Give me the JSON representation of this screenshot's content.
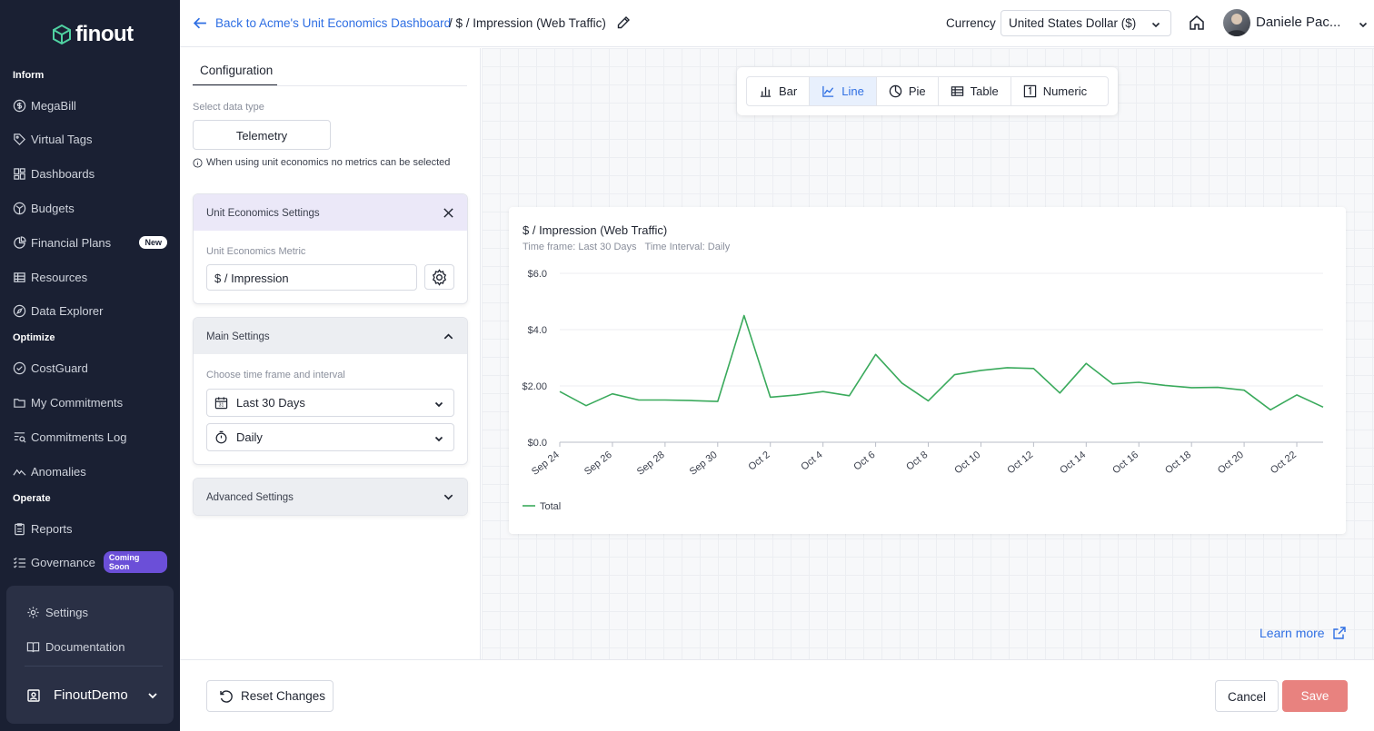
{
  "brand": {
    "name": "finout"
  },
  "sidebar": {
    "sections": {
      "inform": "Inform",
      "optimize": "Optimize",
      "operate": "Operate"
    },
    "items": [
      {
        "label": "MegaBill"
      },
      {
        "label": "Virtual Tags"
      },
      {
        "label": "Dashboards"
      },
      {
        "label": "Budgets"
      },
      {
        "label": "Financial Plans",
        "badge": "New"
      },
      {
        "label": "Resources"
      },
      {
        "label": "Data Explorer"
      },
      {
        "label": "CostGuard"
      },
      {
        "label": "My Commitments"
      },
      {
        "label": "Commitments Log"
      },
      {
        "label": "Anomalies"
      },
      {
        "label": "Reports"
      },
      {
        "label": "Governance",
        "badge": "Coming Soon"
      }
    ],
    "bottom": {
      "settings": "Settings",
      "documentation": "Documentation",
      "org": "FinoutDemo"
    }
  },
  "header": {
    "back_label": "Back to Acme's Unit Economics Dashboard",
    "separator": "/",
    "title": "$ / Impression (Web Traffic)",
    "currency_label": "Currency",
    "currency_value": "United States Dollar ($)",
    "user_name": "Daniele Pac..."
  },
  "config": {
    "tab": "Configuration",
    "data_type_label": "Select data type",
    "data_type_value": "Telemetry",
    "note": "When using unit economics no metrics can be selected",
    "ue_settings": {
      "title": "Unit Economics Settings",
      "metric_label": "Unit Economics Metric",
      "metric_value": "$ / Impression"
    },
    "main_settings": {
      "title": "Main Settings",
      "timeframe_label": "Choose time frame and interval",
      "timeframe_value": "Last 30 Days",
      "interval_value": "Daily"
    },
    "advanced_settings": {
      "title": "Advanced Settings"
    }
  },
  "chart_types": {
    "bar": "Bar",
    "line": "Line",
    "pie": "Pie",
    "table": "Table",
    "numeric": "Numeric",
    "active": "Line"
  },
  "chart_data": {
    "type": "line",
    "title": "$ / Impression (Web Traffic)",
    "timeframe": "Time frame: Last 30 Days",
    "interval": "Time Interval: Daily",
    "x": [
      "Sep 24",
      "Sep 25",
      "Sep 26",
      "Sep 27",
      "Sep 28",
      "Sep 29",
      "Sep 30",
      "Oct 1",
      "Oct 2",
      "Oct 3",
      "Oct 4",
      "Oct 5",
      "Oct 6",
      "Oct 7",
      "Oct 8",
      "Oct 9",
      "Oct 10",
      "Oct 11",
      "Oct 12",
      "Oct 13",
      "Oct 14",
      "Oct 15",
      "Oct 16",
      "Oct 17",
      "Oct 18",
      "Oct 19",
      "Oct 20",
      "Oct 21",
      "Oct 22",
      "Oct 23"
    ],
    "xtick_labels": [
      "Sep 24",
      "Sep 26",
      "Sep 28",
      "Sep 30",
      "Oct 2",
      "Oct 4",
      "Oct 6",
      "Oct 8",
      "Oct 10",
      "Oct 12",
      "Oct 14",
      "Oct 16",
      "Oct 18",
      "Oct 20",
      "Oct 22"
    ],
    "yticks": [
      0,
      2,
      4,
      6
    ],
    "ytick_labels": [
      "$0.0",
      "$2.00",
      "$4.0",
      "$6.0"
    ],
    "ylim": [
      0,
      6
    ],
    "series": [
      {
        "name": "Total",
        "color": "#3aaa5c",
        "values": [
          1.8,
          1.3,
          1.72,
          1.5,
          1.5,
          1.48,
          1.45,
          4.5,
          1.6,
          1.68,
          1.8,
          1.65,
          3.12,
          2.1,
          1.47,
          2.4,
          2.55,
          2.65,
          2.62,
          1.75,
          2.8,
          2.07,
          2.13,
          2.02,
          1.94,
          1.95,
          1.85,
          1.15,
          1.68,
          1.25
        ]
      }
    ]
  },
  "learn_more": "Learn more",
  "footer": {
    "reset": "Reset Changes",
    "cancel": "Cancel",
    "save": "Save"
  },
  "colors": {
    "accent": "#2f6fe3",
    "save": "#e8827f",
    "sidebar": "#1a2033",
    "series": "#3aaa5c"
  }
}
